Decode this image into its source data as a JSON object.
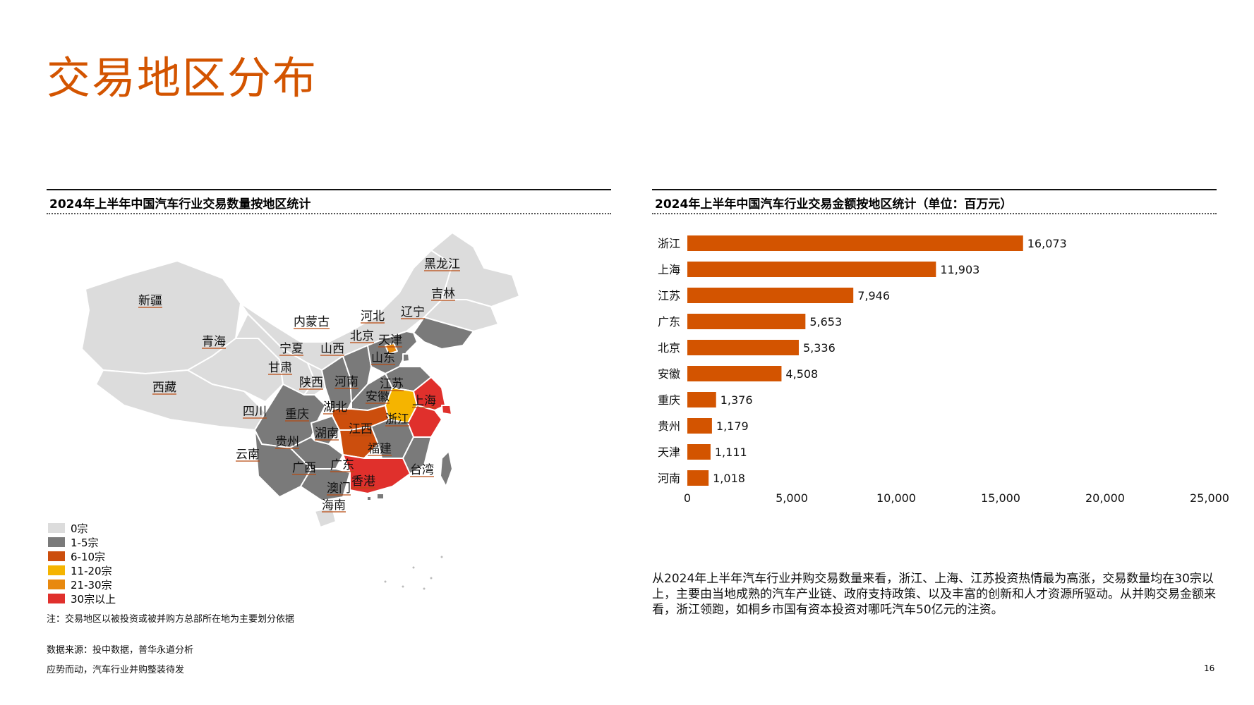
{
  "page": {
    "title": "交易地区分布",
    "map_heading": "2024年上半年中国汽车行业交易数量按地区统计",
    "bar_heading": "2024年上半年中国汽车行业交易金额按地区统计（单位：百万元）",
    "map_note": "注：交易地区以被投资或被并购方总部所在地为主要划分依据",
    "source": "数据来源：投中数据，普华永道分析",
    "footer": "应势而动，汽车行业并购整装待发",
    "page_number": "16",
    "commentary": "从2024年上半年汽车行业并购交易数量来看，浙江、上海、江苏投资热情最为高涨，交易数量均在30宗以上，主要由当地成熟的汽车产业链、政府支持政策、以及丰富的创新和人才资源所驱动。从并购交易金额来看，浙江领跑，如桐乡市国有资本投资对哪吒汽车50亿元的注资。"
  },
  "colors": {
    "accent": "#d35400",
    "band_0": "#dcdcdc",
    "band_1_5": "#7a7a7a",
    "band_6_10": "#cc4e0d",
    "band_11_20": "#f5b400",
    "band_21_30": "#e8890f",
    "band_30_plus": "#e0302c",
    "bar": "#d35400"
  },
  "legend": [
    {
      "label": "0宗",
      "color": "#dcdcdc"
    },
    {
      "label": "1-5宗",
      "color": "#7a7a7a"
    },
    {
      "label": "6-10宗",
      "color": "#cc4e0d"
    },
    {
      "label": "11-20宗",
      "color": "#f5b400"
    },
    {
      "label": "21-30宗",
      "color": "#e8890f"
    },
    {
      "label": "30宗以上",
      "color": "#e0302c"
    }
  ],
  "map_regions": [
    {
      "name": "新疆",
      "band": "0宗"
    },
    {
      "name": "西藏",
      "band": "0宗"
    },
    {
      "name": "青海",
      "band": "0宗"
    },
    {
      "name": "内蒙古",
      "band": "0宗"
    },
    {
      "name": "黑龙江",
      "band": "0宗"
    },
    {
      "name": "吉林",
      "band": "0宗"
    },
    {
      "name": "宁夏",
      "band": "0宗"
    },
    {
      "name": "甘肃",
      "band": "0宗"
    },
    {
      "name": "海南",
      "band": "0宗"
    },
    {
      "name": "辽宁",
      "band": "1-5宗"
    },
    {
      "name": "河北",
      "band": "1-5宗"
    },
    {
      "name": "山西",
      "band": "1-5宗"
    },
    {
      "name": "山东",
      "band": "1-5宗"
    },
    {
      "name": "陕西",
      "band": "1-5宗"
    },
    {
      "name": "河南",
      "band": "1-5宗"
    },
    {
      "name": "四川",
      "band": "1-5宗"
    },
    {
      "name": "重庆",
      "band": "1-5宗"
    },
    {
      "name": "云南",
      "band": "1-5宗"
    },
    {
      "name": "贵州",
      "band": "1-5宗"
    },
    {
      "name": "广西",
      "band": "1-5宗"
    },
    {
      "name": "江西",
      "band": "1-5宗"
    },
    {
      "name": "福建",
      "band": "1-5宗"
    },
    {
      "name": "台湾",
      "band": "1-5宗"
    },
    {
      "name": "天津",
      "band": "1-5宗"
    },
    {
      "name": "香港",
      "band": "1-5宗"
    },
    {
      "name": "澳门",
      "band": "1-5宗"
    },
    {
      "name": "湖北",
      "band": "6-10宗"
    },
    {
      "name": "湖南",
      "band": "6-10宗"
    },
    {
      "name": "安徽",
      "band": "11-20宗"
    },
    {
      "name": "北京",
      "band": "21-30宗"
    },
    {
      "name": "江苏",
      "band": "30宗以上"
    },
    {
      "name": "上海",
      "band": "30宗以上"
    },
    {
      "name": "浙江",
      "band": "30宗以上"
    },
    {
      "name": "广东",
      "band": "30宗以上"
    }
  ],
  "chart_data": {
    "type": "bar",
    "orientation": "horizontal",
    "title": "2024年上半年中国汽车行业交易金额按地区统计（单位：百万元）",
    "categories": [
      "浙江",
      "上海",
      "江苏",
      "广东",
      "北京",
      "安徽",
      "重庆",
      "贵州",
      "天津",
      "河南"
    ],
    "values": [
      16073,
      11903,
      7946,
      5653,
      5336,
      4508,
      1376,
      1179,
      1111,
      1018
    ],
    "value_labels": [
      "16,073",
      "11,903",
      "7,946",
      "5,653",
      "5,336",
      "4,508",
      "1,376",
      "1,179",
      "1,111",
      "1,018"
    ],
    "xlim": [
      0,
      25000
    ],
    "xticks": [
      0,
      5000,
      10000,
      15000,
      20000,
      25000
    ],
    "xtick_labels": [
      "0",
      "5,000",
      "10,000",
      "15,000",
      "20,000",
      "25,000"
    ],
    "grid": false,
    "color": "#d35400"
  }
}
